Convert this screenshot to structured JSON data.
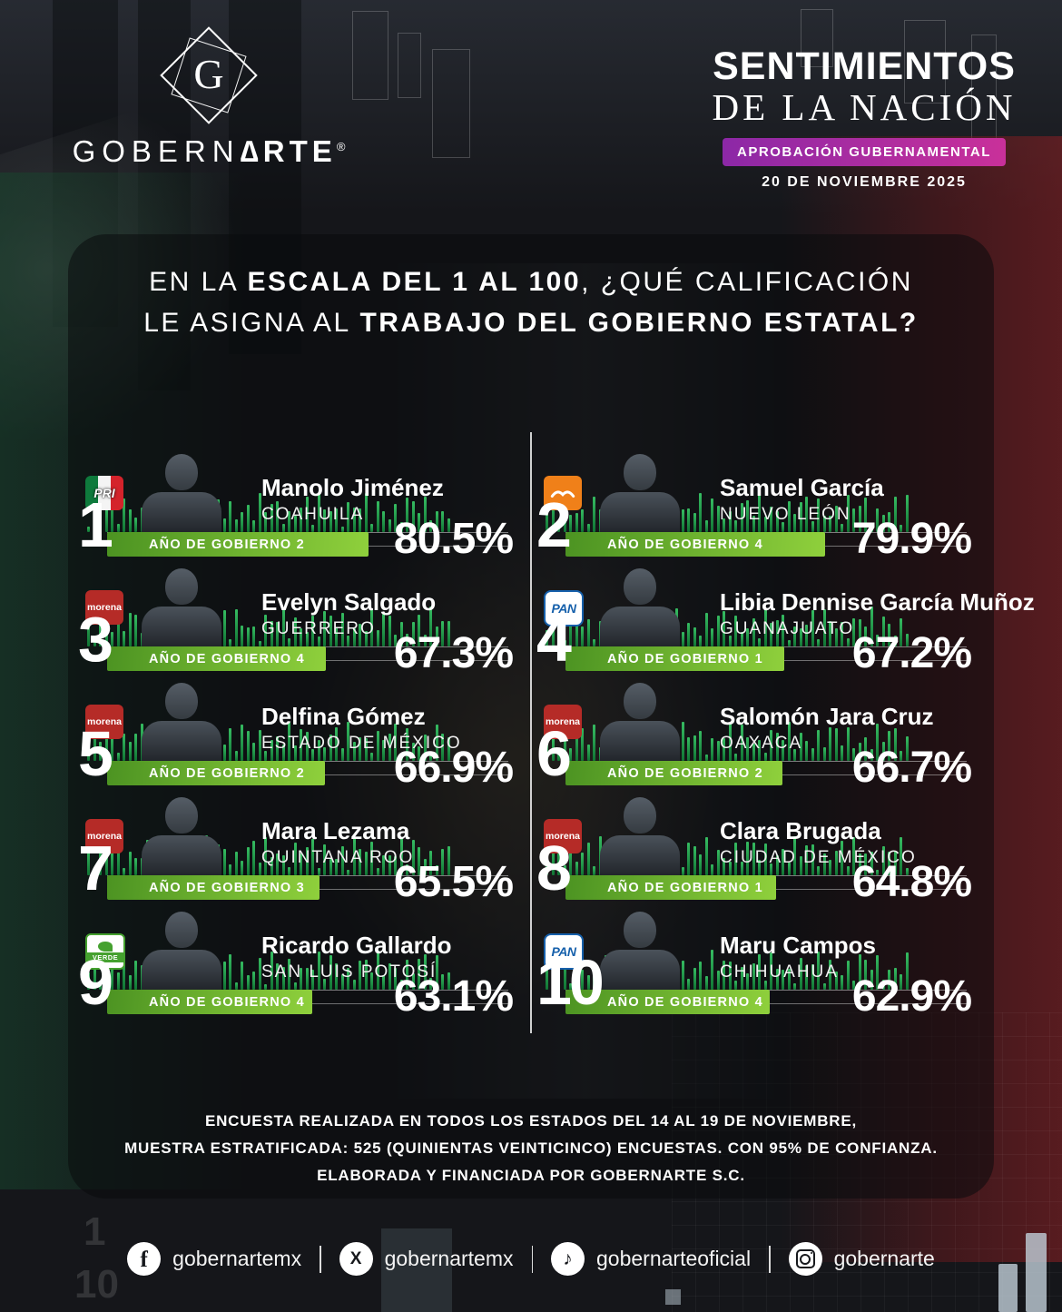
{
  "header": {
    "logo_letter": "G",
    "brand_light": "GOBERN",
    "brand_bold": "∆RTE",
    "registered": "®",
    "title_line1": "SENTIMIENTOS",
    "title_line2": "DE LA NACIÓN",
    "badge": "APROBACIÓN GUBERNAMENTAL",
    "date": "20 DE NOVIEMBRE 2025"
  },
  "question": {
    "l1_regular": "EN LA ",
    "l1_bold": "ESCALA DEL 1 AL 100",
    "l1_regular2": ", ¿QUÉ CALIFICACIÓN",
    "l2_regular": "LE ASIGNA AL ",
    "l2_bold": "TRABAJO DEL GOBIERNO ESTATAL?"
  },
  "governors": [
    {
      "rank": "1",
      "party": "PRI",
      "party_class": "pri",
      "party_label": "PRI",
      "name": "Manolo Jiménez",
      "state": "COAHUILA",
      "term_label": "AÑO DE GOBIERNO 2",
      "score": 80.5,
      "score_label": "80.5%"
    },
    {
      "rank": "2",
      "party": "MOVIMIENTO CIUDADANO",
      "party_class": "mc",
      "party_label": "",
      "name": "Samuel García",
      "state": "NUEVO LEÓN",
      "term_label": "AÑO DE GOBIERNO 4",
      "score": 79.9,
      "score_label": "79.9%"
    },
    {
      "rank": "3",
      "party": "MORENA",
      "party_class": "morena",
      "party_label": "morena",
      "name": "Evelyn Salgado",
      "state": "GUERRERO",
      "term_label": "AÑO DE GOBIERNO 4",
      "score": 67.3,
      "score_label": "67.3%"
    },
    {
      "rank": "4",
      "party": "PAN",
      "party_class": "pan",
      "party_label": "PAN",
      "name": "Libia Dennise García Muñoz",
      "state": "GUANAJUATO",
      "term_label": "AÑO DE GOBIERNO 1",
      "score": 67.2,
      "score_label": "67.2%"
    },
    {
      "rank": "5",
      "party": "MORENA",
      "party_class": "morena",
      "party_label": "morena",
      "name": "Delfina Gómez",
      "state": "ESTADO DE MÉXICO",
      "term_label": "AÑO DE GOBIERNO 2",
      "score": 66.9,
      "score_label": "66.9%"
    },
    {
      "rank": "6",
      "party": "MORENA",
      "party_class": "morena",
      "party_label": "morena",
      "name": "Salomón Jara Cruz",
      "state": "OAXACA",
      "term_label": "AÑO DE GOBIERNO 2",
      "score": 66.7,
      "score_label": "66.7%"
    },
    {
      "rank": "7",
      "party": "MORENA",
      "party_class": "morena",
      "party_label": "morena",
      "name": "Mara Lezama",
      "state": "QUINTANA ROO",
      "term_label": "AÑO DE GOBIERNO 3",
      "score": 65.5,
      "score_label": "65.5%"
    },
    {
      "rank": "8",
      "party": "MORENA",
      "party_class": "morena",
      "party_label": "morena",
      "name": "Clara Brugada",
      "state": "CIUDAD DE MÉXICO",
      "term_label": "AÑO DE GOBIERNO 1",
      "score": 64.8,
      "score_label": "64.8%"
    },
    {
      "rank": "9",
      "party": "VERDE",
      "party_class": "verde",
      "party_label": "VERDE",
      "name": "Ricardo Gallardo",
      "state": "SAN LUIS POTOSÍ",
      "term_label": "AÑO DE GOBIERNO 4",
      "score": 63.1,
      "score_label": "63.1%"
    },
    {
      "rank": "10",
      "party": "PAN",
      "party_class": "pan",
      "party_label": "PAN",
      "name": "Maru Campos",
      "state": "CHIHUAHUA",
      "term_label": "AÑO DE GOBIERNO 4",
      "score": 62.9,
      "score_label": "62.9%"
    }
  ],
  "chart_data": {
    "type": "bar",
    "title": "EN LA ESCALA DEL 1 AL 100, ¿QUÉ CALIFICACIÓN LE ASIGNA AL TRABAJO DEL GOBIERNO ESTATAL?",
    "unit": "%",
    "xlim": [
      0,
      100
    ],
    "orientation": "horizontal",
    "grid": false,
    "legend": false,
    "categories": [
      "Manolo Jiménez (Coahuila)",
      "Samuel García (Nuevo León)",
      "Evelyn Salgado (Guerrero)",
      "Libia Dennise García Muñoz (Guanajuato)",
      "Delfina Gómez (Estado de México)",
      "Salomón Jara Cruz (Oaxaca)",
      "Mara Lezama (Quintana Roo)",
      "Clara Brugada (Ciudad de México)",
      "Ricardo Gallardo (San Luis Potosí)",
      "Maru Campos (Chihuahua)"
    ],
    "values": [
      80.5,
      79.9,
      67.3,
      67.2,
      66.9,
      66.7,
      65.5,
      64.8,
      63.1,
      62.9
    ],
    "bar_annotations": [
      "AÑO DE GOBIERNO 2",
      "AÑO DE GOBIERNO 4",
      "AÑO DE GOBIERNO 4",
      "AÑO DE GOBIERNO 1",
      "AÑO DE GOBIERNO 2",
      "AÑO DE GOBIERNO 2",
      "AÑO DE GOBIERNO 3",
      "AÑO DE GOBIERNO 1",
      "AÑO DE GOBIERNO 4",
      "AÑO DE GOBIERNO 4"
    ]
  },
  "footnote": {
    "l1a": "ENCUESTA REALIZADA EN TODOS LOS ESTADOS DEL ",
    "l1b": "14 AL 19 DE NOVIEMBRE,",
    "l2a": "MUESTRA ESTRATIFICADA: ",
    "l2b": "525 (QUINIENTAS VEINTICINCO)",
    "l2c": " ENCUESTAS. ",
    "l2d": "CON 95% DE CONFIANZA.",
    "l3a": "ELABORADA Y FINANCIADA POR ",
    "l3b": "GOBERNARTE S.C."
  },
  "social": {
    "facebook": "gobernartemx",
    "x": "gobernartemx",
    "tiktok": "gobernarteoficial",
    "instagram": "gobernarte"
  },
  "colors": {
    "bar_green_start": "#4c9322",
    "bar_green_end": "#8fd03c",
    "equalizer_green": "#2fae57",
    "badge_purple": "#8c28a6",
    "badge_magenta": "#c9309a",
    "pri_green": "#0e7a3c",
    "pri_red": "#d4232b",
    "morena_red": "#b52b27",
    "pan_blue": "#1660ab",
    "verde_green": "#45a12f",
    "mc_orange": "#f08019"
  }
}
